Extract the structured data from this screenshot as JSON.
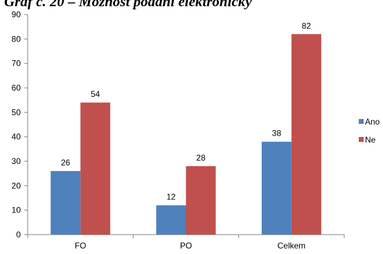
{
  "chart_data": {
    "type": "bar",
    "title": "Graf č. 20 – Možnost podání elektronicky",
    "categories": [
      "FO",
      "PO",
      "Celkem"
    ],
    "series": [
      {
        "name": "Ano",
        "values": [
          26,
          12,
          38
        ],
        "color": "#4F81BD"
      },
      {
        "name": "Ne",
        "values": [
          54,
          28,
          82
        ],
        "color": "#C0504D"
      }
    ],
    "ylim": [
      0,
      90
    ],
    "yticks": [
      0,
      10,
      20,
      30,
      40,
      50,
      60,
      70,
      80,
      90
    ],
    "grid": false,
    "legend_position": "right",
    "xlabel": "",
    "ylabel": ""
  }
}
